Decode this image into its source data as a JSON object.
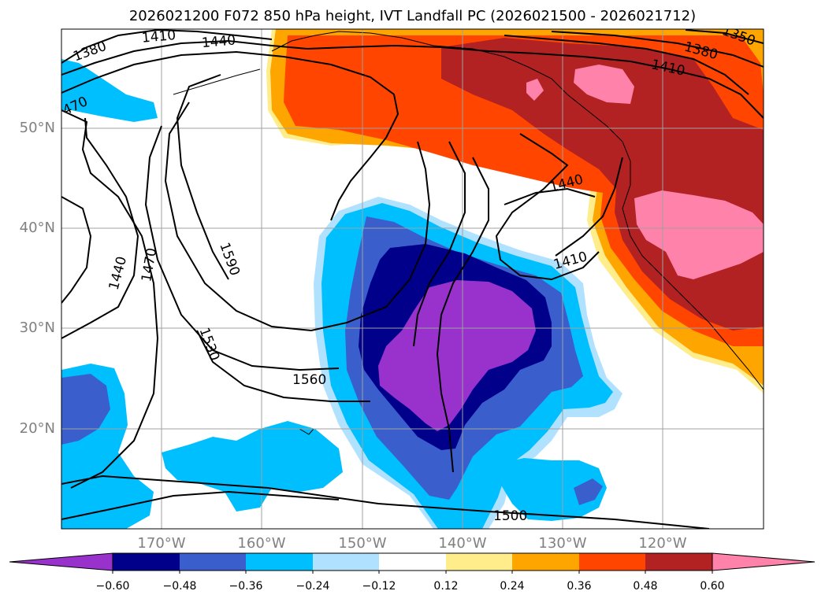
{
  "title": "2026021200 F072 850 hPa height, IVT Landfall PC (2026021500 - 2026021712)",
  "map": {
    "region_lon": [
      -180,
      -110
    ],
    "region_lat": [
      10,
      60
    ],
    "lat_labels": [
      "50°N",
      "40°N",
      "30°N",
      "20°N"
    ],
    "lon_labels": [
      "170°W",
      "160°W",
      "150°W",
      "140°W",
      "130°W",
      "120°W"
    ],
    "contour_labels": [
      "1380",
      "1410",
      "1440",
      "1350",
      "1380",
      "1410",
      "470",
      "1440",
      "1410",
      "1590",
      "1440",
      "1470",
      "1530",
      "1560",
      "1500"
    ],
    "fill_colors": {
      "neg_060": "#9932cc",
      "neg_048": "#00008b",
      "neg_036": "#3a5fcd",
      "neg_024": "#00bfff",
      "neg_012": "#b0e2ff",
      "pos_024": "#ffa500",
      "pos_036": "#ff4500",
      "pos_048": "#b22222",
      "pos_060": "#ff82ab",
      "pos_012": "#ffec8b"
    }
  },
  "colorbar": {
    "labels": [
      "−0.60",
      "−0.48",
      "−0.36",
      "−0.24",
      "−0.12",
      "0.12",
      "0.24",
      "0.36",
      "0.48",
      "0.60"
    ],
    "colors": [
      "#9932cc",
      "#00008b",
      "#3a5fcd",
      "#00bfff",
      "#b0e2ff",
      "#ffffff",
      "#ffec8b",
      "#ffa500",
      "#ff4500",
      "#b22222",
      "#ff82ab"
    ]
  }
}
